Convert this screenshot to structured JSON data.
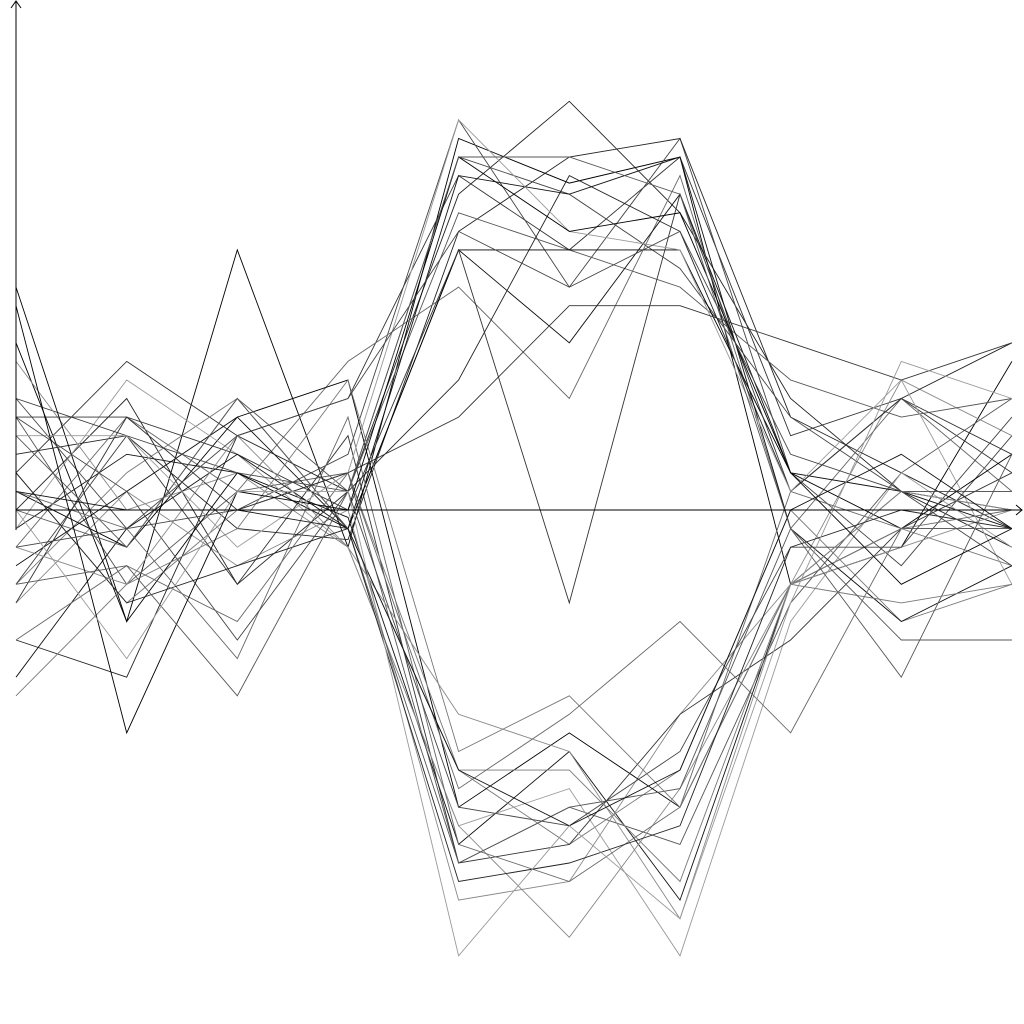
{
  "chart_data": {
    "type": "line",
    "title": "",
    "xlabel": "",
    "ylabel": "",
    "grid": false,
    "legend": "none",
    "x": [
      0,
      1,
      2,
      3,
      4,
      5,
      6,
      7,
      8,
      9
    ],
    "xlim": [
      0,
      9.1
    ],
    "ylim": [
      -1.33,
      1.37
    ],
    "series": [
      {
        "values": [
          0.45,
          -0.3,
          0.7,
          -0.1,
          1.0,
          0.88,
          0.95,
          -0.2,
          -0.1,
          0.4
        ],
        "color": "#000000"
      },
      {
        "values": [
          -0.05,
          0.15,
          0.1,
          -0.02,
          -0.9,
          -0.65,
          -1.05,
          -0.2,
          0.05,
          -0.05
        ],
        "color": "#111111"
      },
      {
        "values": [
          0.1,
          0.4,
          0.2,
          0.3,
          0.9,
          0.7,
          0.95,
          0.2,
          0.3,
          0.1
        ],
        "color": "#333333"
      },
      {
        "values": [
          0.25,
          -0.2,
          0.05,
          0.1,
          -0.95,
          -0.8,
          -0.9,
          -0.25,
          0.1,
          0.3
        ],
        "color": "#555555"
      },
      {
        "values": [
          0.0,
          0.3,
          -0.2,
          0.05,
          0.85,
          1.1,
          0.8,
          0.3,
          0.05,
          -0.1
        ],
        "color": "#222222"
      },
      {
        "values": [
          -0.2,
          0.1,
          0.3,
          -0.05,
          -0.7,
          -0.9,
          -0.7,
          0.0,
          -0.3,
          -0.2
        ],
        "color": "#777777"
      },
      {
        "values": [
          0.3,
          -0.05,
          0.0,
          0.15,
          1.05,
          0.6,
          1.0,
          0.1,
          -0.15,
          0.2
        ],
        "color": "#444444"
      },
      {
        "values": [
          -0.25,
          0.05,
          -0.15,
          0.0,
          -1.05,
          -1.0,
          -0.55,
          -0.2,
          0.35,
          0.2
        ],
        "color": "#888888"
      },
      {
        "values": [
          0.15,
          0.2,
          -0.05,
          -0.08,
          0.75,
          0.95,
          1.0,
          0.25,
          0.1,
          -0.05
        ],
        "color": "#222222"
      },
      {
        "values": [
          -0.1,
          0.25,
          0.05,
          0.4,
          0.6,
          0.3,
          0.9,
          -0.05,
          0.3,
          0.05
        ],
        "color": "#666666"
      },
      {
        "values": [
          0.05,
          -0.1,
          0.25,
          0.35,
          -0.8,
          -0.6,
          -0.8,
          -0.2,
          -0.05,
          0.15
        ],
        "color": "#000000"
      },
      {
        "values": [
          -0.05,
          0.35,
          0.15,
          -0.1,
          -0.85,
          -0.75,
          -1.2,
          -0.3,
          0.1,
          -0.1
        ],
        "color": "#999999"
      },
      {
        "values": [
          0.2,
          -0.1,
          0.3,
          0.05,
          0.8,
          0.7,
          0.6,
          0.35,
          0.25,
          0.3
        ],
        "color": "#555555"
      },
      {
        "values": [
          0.3,
          0.2,
          -0.2,
          0.2,
          -0.95,
          -0.9,
          -0.55,
          -0.35,
          -0.05,
          0.1
        ],
        "color": "#333333"
      },
      {
        "values": [
          -0.15,
          0.05,
          0.25,
          -0.05,
          0.7,
          0.45,
          0.85,
          0.1,
          0.05,
          0.0
        ],
        "color": "#111111"
      },
      {
        "values": [
          0.1,
          -0.25,
          0.0,
          0.1,
          -0.7,
          -0.7,
          -1.0,
          -0.2,
          -0.05,
          -0.15
        ],
        "color": "#777777"
      },
      {
        "values": [
          -0.2,
          0.2,
          0.1,
          0.05,
          0.95,
          0.85,
          0.65,
          0.25,
          0.05,
          0.05
        ],
        "color": "#444444"
      },
      {
        "values": [
          0.4,
          0.0,
          0.1,
          -0.1,
          -0.85,
          -1.15,
          -0.75,
          -0.2,
          -0.1,
          0.0
        ],
        "color": "#888888"
      },
      {
        "values": [
          -0.35,
          -0.45,
          0.2,
          0.05,
          0.35,
          0.9,
          0.75,
          0.05,
          0.3,
          0.45
        ],
        "color": "#222222"
      },
      {
        "values": [
          0.6,
          -0.3,
          0.1,
          -0.05,
          0.7,
          0.7,
          0.7,
          0.1,
          -0.05,
          -0.05
        ],
        "color": "#000000"
      },
      {
        "values": [
          0.05,
          -0.05,
          -0.4,
          0.25,
          -0.9,
          -1.0,
          -0.8,
          0.05,
          -0.05,
          -0.05
        ],
        "color": "#666666"
      },
      {
        "values": [
          -0.25,
          0.25,
          0.15,
          0.0,
          0.7,
          -0.25,
          0.85,
          0.05,
          0.3,
          0.15
        ],
        "color": "#333333"
      },
      {
        "values": [
          -0.45,
          -0.05,
          0.15,
          -0.05,
          0.9,
          0.85,
          0.95,
          -0.05,
          -0.3,
          -0.15
        ],
        "color": "#111111"
      },
      {
        "values": [
          0.0,
          -0.1,
          0.3,
          -0.05,
          -0.95,
          -0.8,
          -0.75,
          -0.05,
          -0.45,
          0.15
        ],
        "color": "#555555"
      },
      {
        "values": [
          0.2,
          0.2,
          -0.1,
          0.1,
          1.05,
          0.75,
          0.7,
          0.05,
          0.35,
          -0.2
        ],
        "color": "#999999"
      },
      {
        "values": [
          0.25,
          0.05,
          -0.35,
          0.05,
          -0.8,
          -0.85,
          -0.65,
          -0.1,
          -0.1,
          0.25
        ],
        "color": "#444444"
      },
      {
        "values": [
          -0.5,
          -0.2,
          -0.05,
          0.35,
          -0.65,
          -0.5,
          -0.8,
          -0.2,
          -0.25,
          -0.2
        ],
        "color": "#777777"
      },
      {
        "values": [
          0.25,
          0.25,
          0.0,
          0.1,
          0.25,
          0.55,
          0.55,
          0.45,
          0.35,
          0.45
        ],
        "color": "#333333"
      },
      {
        "values": [
          -0.1,
          -0.2,
          0.2,
          -0.1,
          -0.55,
          -0.65,
          -1.1,
          -0.2,
          0.05,
          0.0
        ],
        "color": "#888888"
      },
      {
        "values": [
          0.1,
          -0.25,
          -0.15,
          -0.05,
          -1.0,
          -0.95,
          -0.85,
          -0.1,
          0.0,
          -0.05
        ],
        "color": "#222222"
      },
      {
        "values": [
          -0.35,
          -0.15,
          -0.3,
          0.1,
          -0.75,
          -0.55,
          -0.3,
          -0.6,
          -0.05,
          0.0
        ],
        "color": "#666666"
      },
      {
        "values": [
          0.55,
          -0.6,
          0.05,
          0.0,
          0.95,
          0.75,
          0.8,
          0.1,
          -0.2,
          -0.05
        ],
        "color": "#000000"
      },
      {
        "values": [
          -0.1,
          -0.05,
          0.2,
          0.3,
          0.75,
          0.6,
          0.75,
          0.15,
          0.05,
          -0.15
        ],
        "color": "#444444"
      },
      {
        "values": [
          0.05,
          0.0,
          0.0,
          -0.05,
          -0.7,
          -0.85,
          -0.7,
          0.0,
          0.15,
          -0.05
        ],
        "color": "#111111"
      },
      {
        "values": [
          -0.2,
          -0.15,
          -0.5,
          0.05,
          0.95,
          0.95,
          0.85,
          -0.05,
          -0.35,
          -0.35
        ],
        "color": "#555555"
      },
      {
        "values": [
          0.0,
          -0.4,
          0.05,
          0.05,
          -1.2,
          -0.85,
          -1.1,
          -0.25,
          0.4,
          0.3
        ],
        "color": "#999999"
      }
    ]
  }
}
